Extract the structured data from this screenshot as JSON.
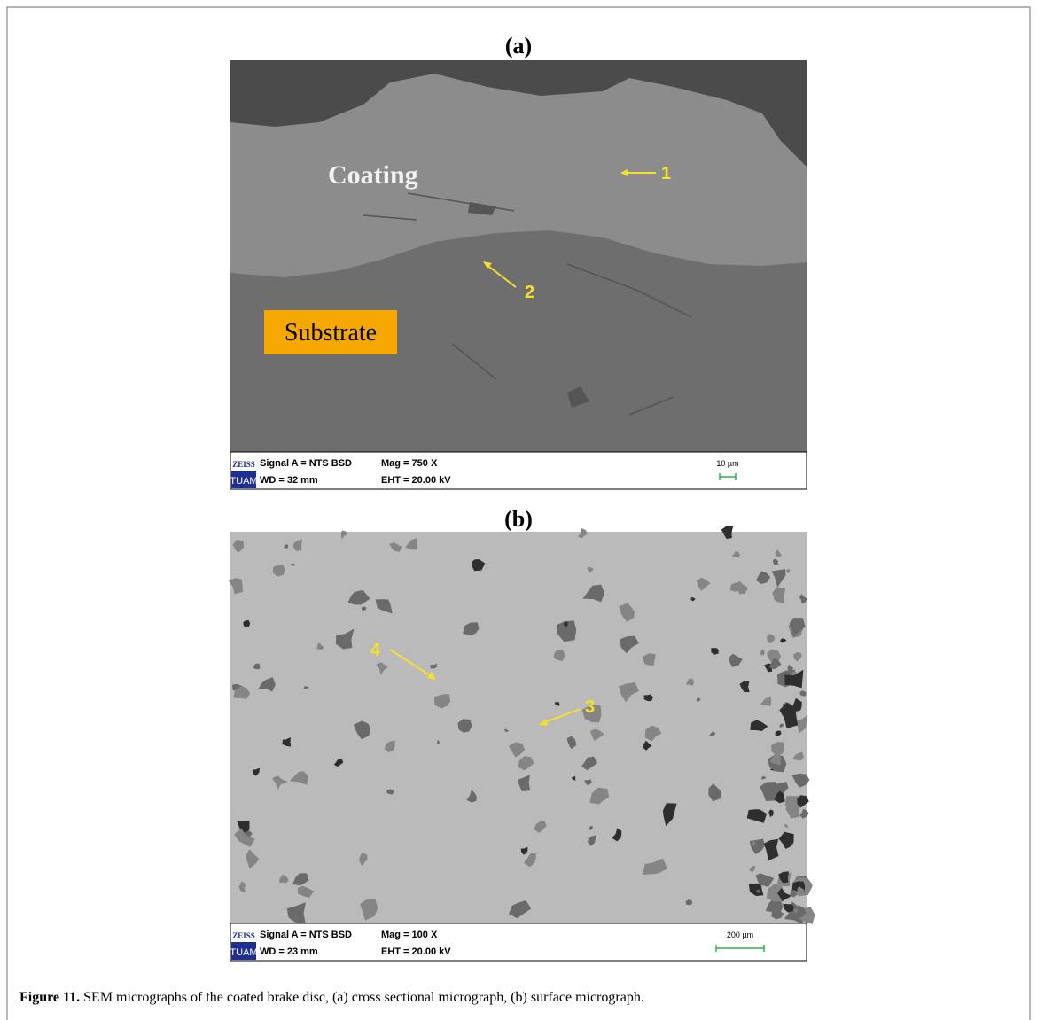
{
  "figure": {
    "panels": [
      {
        "label": "(a)",
        "annotations": [
          "Coating",
          "Substrate",
          "1",
          "2"
        ],
        "info": {
          "logo_top": "ZEISS",
          "logo_bottom": "TUAM",
          "signal": "Signal A = NTS BSD",
          "mag": "Mag =    750 X",
          "wd": "WD =  32 mm",
          "eht": "EHT = 20.00 kV",
          "scale": "10 µm"
        }
      },
      {
        "label": "(b)",
        "annotations": [
          "4",
          "3"
        ],
        "info": {
          "logo_top": "ZEISS",
          "logo_bottom": "TUAM",
          "signal": "Signal A = NTS BSD",
          "mag": "Mag =    100 X",
          "wd": "WD =  23 mm",
          "eht": "EHT = 20.00 kV",
          "scale": "200 µm"
        }
      }
    ],
    "caption": {
      "label": "Figure 11.",
      "text": " SEM micrographs of the coated brake disc, (a) cross sectional micrograph, (b) surface micrograph."
    }
  }
}
